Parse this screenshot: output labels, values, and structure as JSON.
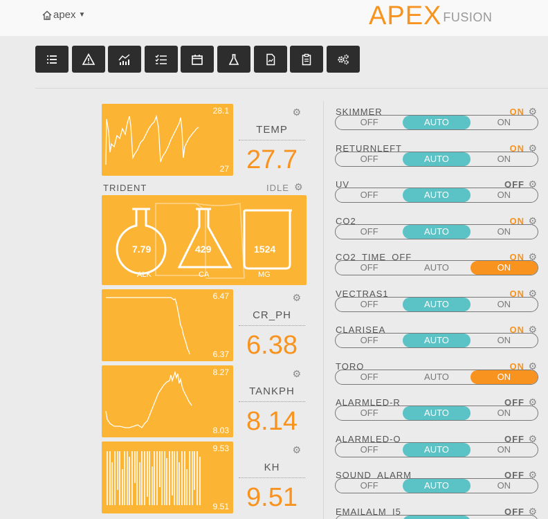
{
  "header": {
    "home_label": "apex",
    "logo_main": "APEX",
    "logo_sub": "FUSION"
  },
  "toolbar": {
    "buttons": [
      {
        "icon": "list-icon"
      },
      {
        "icon": "alert-icon"
      },
      {
        "icon": "graph-icon"
      },
      {
        "icon": "checklist-icon"
      },
      {
        "icon": "calendar-icon"
      },
      {
        "icon": "flask-icon"
      },
      {
        "icon": "document-icon"
      },
      {
        "icon": "clipboard-icon"
      },
      {
        "icon": "gears-icon"
      }
    ]
  },
  "probes": [
    {
      "name": "TEMP",
      "value": "27.7",
      "graph_high": "28.1",
      "graph_low": "27"
    },
    {
      "name": "CR_PH",
      "value": "6.38",
      "graph_high": "6.47",
      "graph_low": "6.37"
    },
    {
      "name": "TANKPH",
      "value": "8.14",
      "graph_high": "8.27",
      "graph_low": "8.03"
    },
    {
      "name": "KH",
      "value": "9.51",
      "graph_high": "9.53",
      "graph_low": "9.51"
    }
  ],
  "trident": {
    "label": "TRIDENT",
    "status": "IDLE",
    "alk_value": "7.79",
    "alk_label": "ALK",
    "ca_value": "429",
    "ca_label": "CA",
    "mg_value": "1524",
    "mg_label": "MG"
  },
  "outlet_labels": {
    "off": "OFF",
    "auto": "AUTO",
    "on": "ON"
  },
  "outlets": [
    {
      "name": "SKIMMER",
      "state": "ON",
      "mode": "AUTO"
    },
    {
      "name": "RETURNLEFT",
      "state": "ON",
      "mode": "AUTO"
    },
    {
      "name": "UV",
      "state": "OFF",
      "mode": "AUTO"
    },
    {
      "name": "CO2",
      "state": "ON",
      "mode": "AUTO"
    },
    {
      "name": "CO2_TIME_OFF",
      "state": "ON",
      "mode": "ON"
    },
    {
      "name": "VECTRAS1",
      "state": "ON",
      "mode": "AUTO"
    },
    {
      "name": "CLARISEA",
      "state": "ON",
      "mode": "AUTO"
    },
    {
      "name": "TORQ",
      "state": "ON",
      "mode": "ON"
    },
    {
      "name": "ALARMLED-R",
      "state": "OFF",
      "mode": "AUTO"
    },
    {
      "name": "ALARMLED-O",
      "state": "OFF",
      "mode": "AUTO"
    },
    {
      "name": "SOUND_ALARM",
      "state": "OFF",
      "mode": "AUTO"
    },
    {
      "name": "EMAILALM_I5",
      "state": "OFF",
      "mode": "AUTO"
    }
  ],
  "colors": {
    "accent_orange": "#f7931e",
    "tile_yellow": "#fbb433",
    "auto_teal": "#5bc2c6",
    "toolbar_dark": "#2d2d2d"
  }
}
